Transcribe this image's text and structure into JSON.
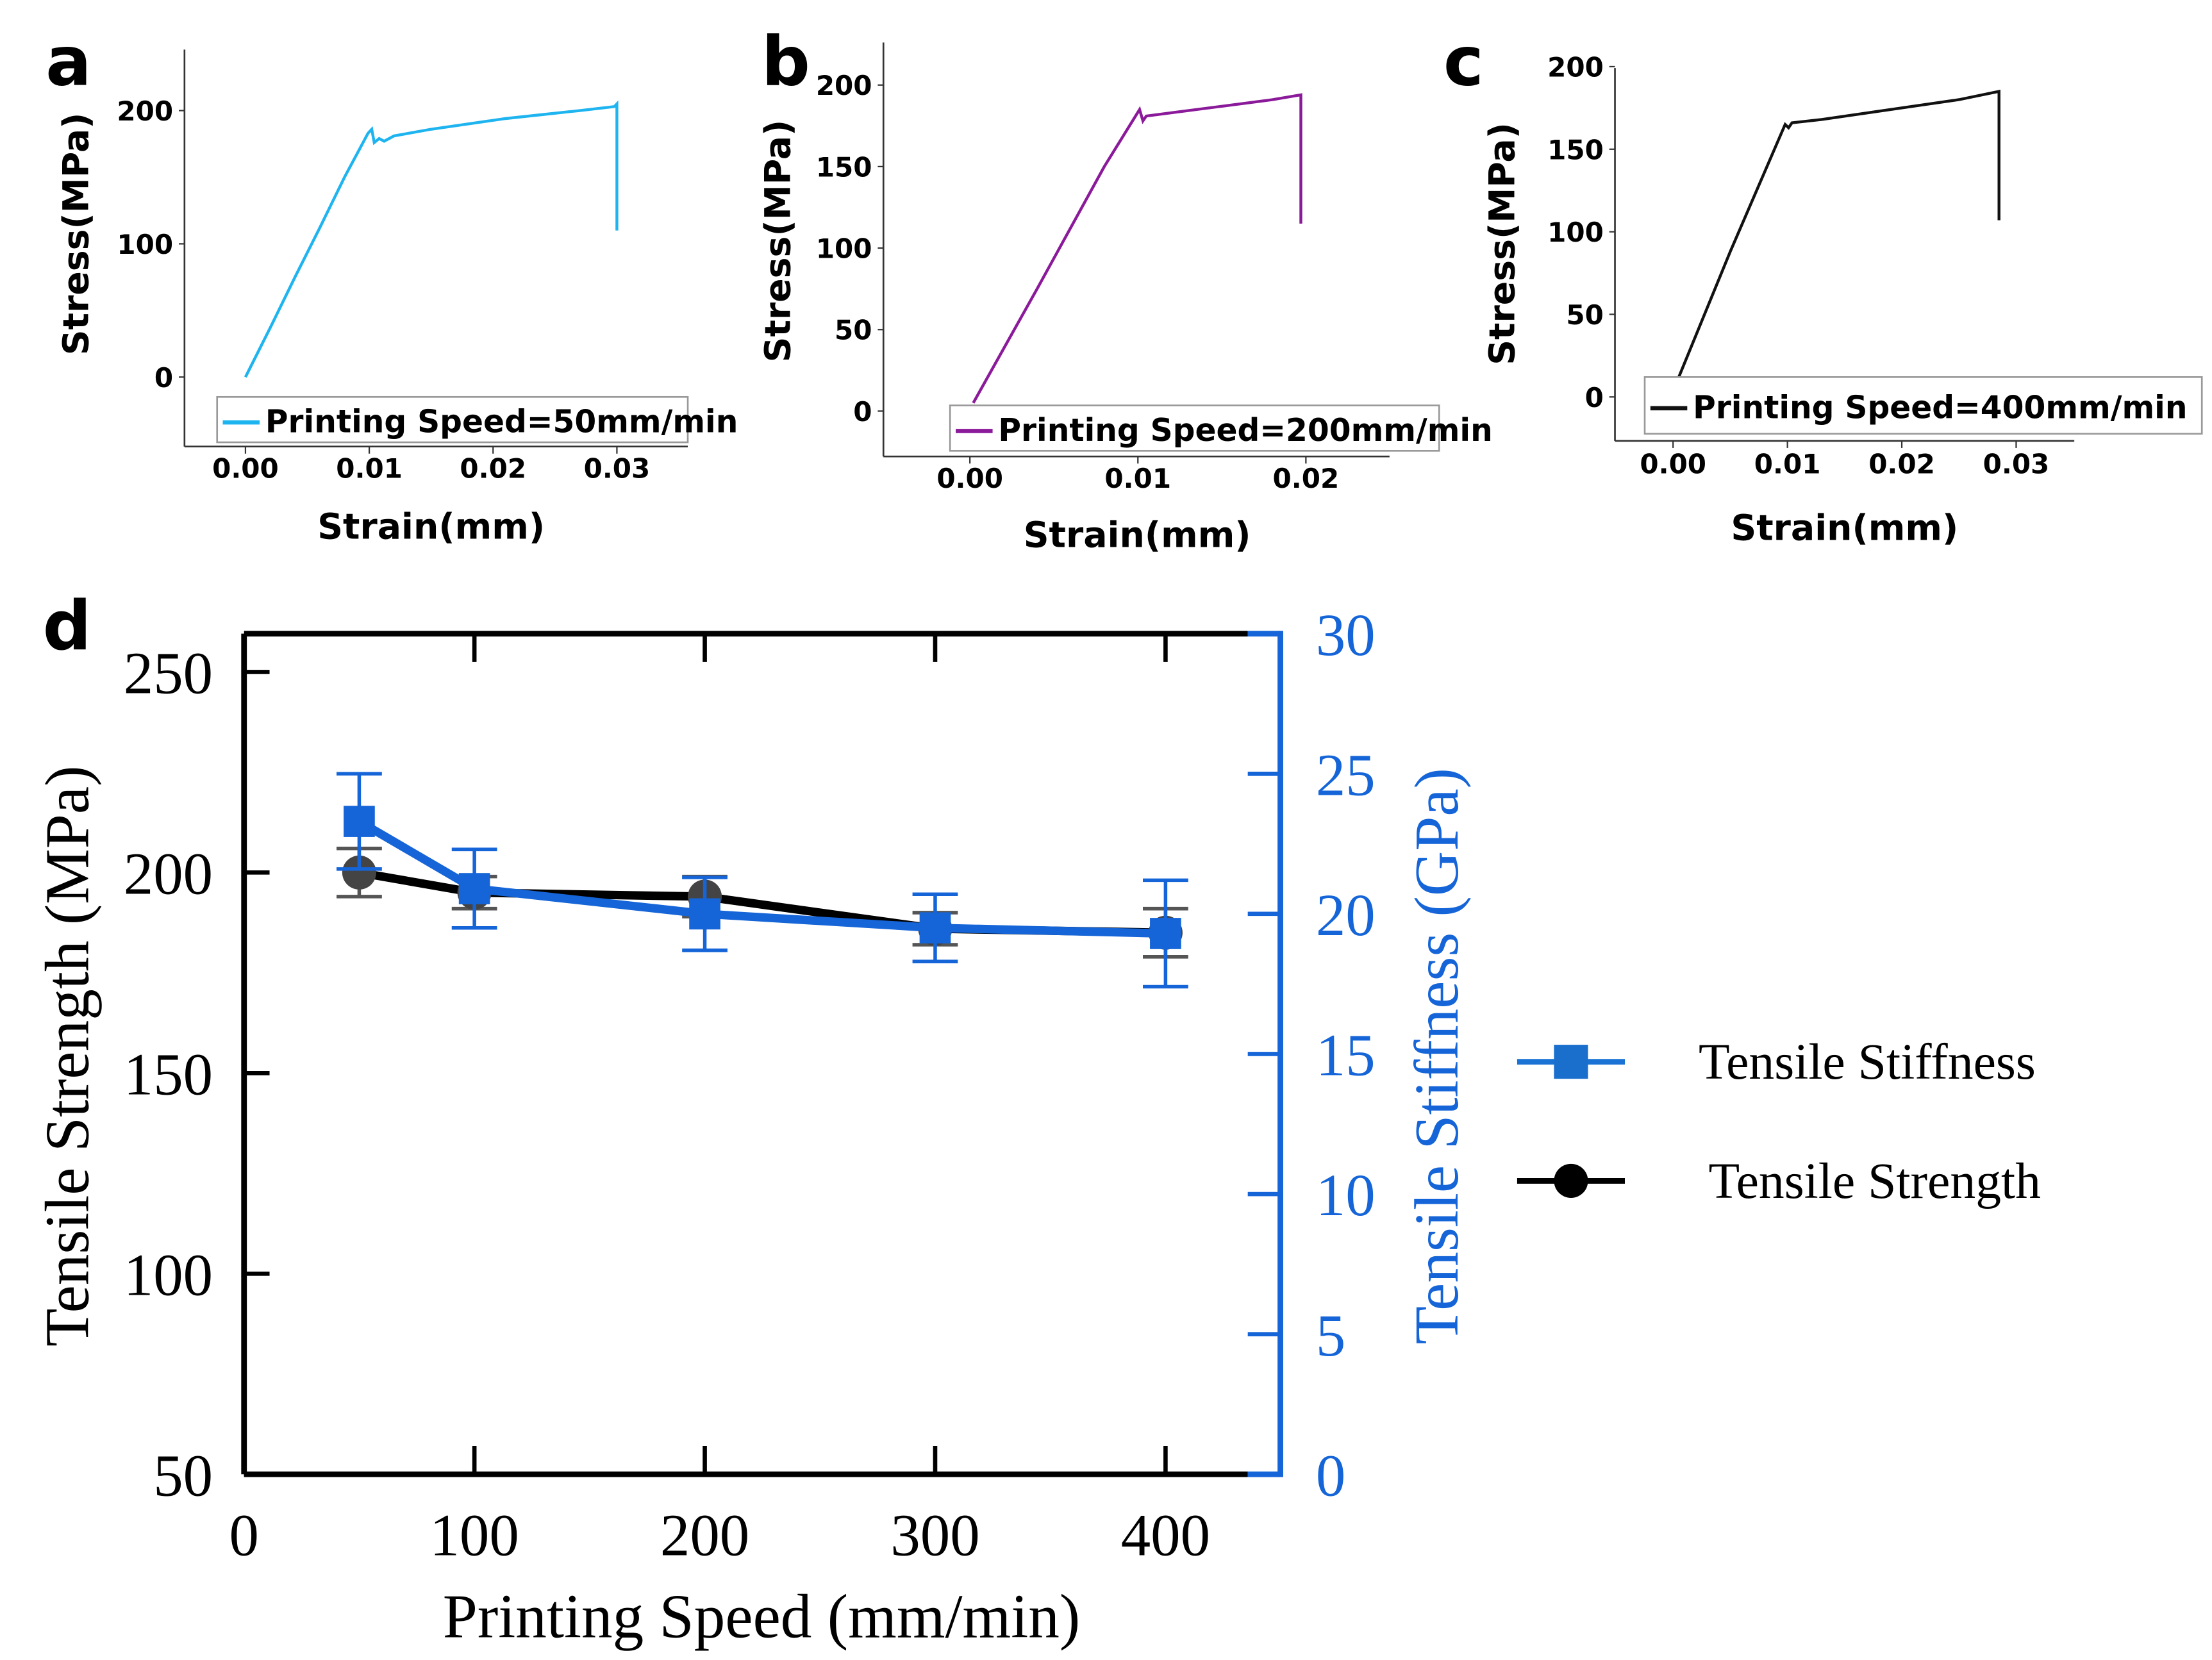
{
  "chart_data": [
    {
      "panel": "a",
      "type": "line",
      "xlabel": "Strain(mm)",
      "ylabel": "Stress(MPa)",
      "xticks": [
        "0.00",
        "0.01",
        "0.02",
        "0.03"
      ],
      "xtick_values": [
        0,
        0.01,
        0.02,
        0.03
      ],
      "yticks": [
        "0",
        "100",
        "200"
      ],
      "ytick_values": [
        0,
        100,
        200
      ],
      "xlim": [
        -0.005,
        0.035
      ],
      "ylim": [
        -50,
        250
      ],
      "legend": "Printing Speed=50mm/min",
      "legend_placement": "bottom",
      "color": "#1EB4F0",
      "series": {
        "x": [
          0,
          0.002,
          0.004,
          0.006,
          0.008,
          0.0099,
          0.0102,
          0.0104,
          0.0108,
          0.0112,
          0.012,
          0.015,
          0.018,
          0.021,
          0.024,
          0.027,
          0.0298,
          0.03,
          0.03
        ],
        "y": [
          0,
          37,
          75,
          112,
          150,
          183,
          186,
          176,
          179,
          177,
          181,
          186,
          190,
          194,
          197,
          200,
          203,
          205,
          110
        ]
      }
    },
    {
      "panel": "b",
      "type": "line",
      "xlabel": "Strain(mm)",
      "ylabel": "Stress(MPa)",
      "xticks": [
        "0.00",
        "0.01",
        "0.02"
      ],
      "xtick_values": [
        0,
        0.01,
        0.02
      ],
      "yticks": [
        "0",
        "50",
        "100",
        "150",
        "200"
      ],
      "ytick_values": [
        0,
        50,
        100,
        150,
        200
      ],
      "xlim": [
        -0.005,
        0.025
      ],
      "ylim": [
        -25,
        225
      ],
      "legend": "Printing Speed=200mm/min",
      "legend_placement": "bottom",
      "color": "#8B1A9A",
      "series": {
        "x": [
          0.0002,
          0.004,
          0.008,
          0.0095,
          0.0101,
          0.0103,
          0.0105,
          0.012,
          0.015,
          0.018,
          0.0197,
          0.0197
        ],
        "y": [
          5,
          75,
          150,
          175,
          185,
          178,
          181,
          183,
          187,
          191,
          194,
          115
        ]
      }
    },
    {
      "panel": "c",
      "type": "line",
      "xlabel": "Strain(mm)",
      "ylabel": "Stress(MPa)",
      "xticks": [
        "0.00",
        "0.01",
        "0.02",
        "0.03"
      ],
      "xtick_values": [
        0,
        0.01,
        0.02,
        0.03
      ],
      "yticks": [
        "0",
        "50",
        "100",
        "150",
        "200"
      ],
      "ytick_values": [
        0,
        50,
        100,
        150,
        200
      ],
      "xlim": [
        -0.005,
        0.035
      ],
      "ylim": [
        -25,
        215
      ],
      "legend": "Printing Speed=400mm/min",
      "legend_placement": "bottom",
      "color": "#111111",
      "series": {
        "x": [
          0.0005,
          0.005,
          0.0098,
          0.0101,
          0.0104,
          0.013,
          0.016,
          0.019,
          0.022,
          0.025,
          0.0285,
          0.0285
        ],
        "y": [
          12,
          88,
          165,
          163,
          166,
          168,
          171,
          174,
          177,
          180,
          185,
          107
        ]
      }
    },
    {
      "panel": "d",
      "type": "line",
      "xlabel": "Printing Speed (mm/min)",
      "ylabel": "Tensile Strength (MPa)",
      "ylabel_right": "Tensile Stiffness (GPa)",
      "xticks": [
        "0",
        "100",
        "200",
        "300",
        "400"
      ],
      "xtick_values": [
        0,
        100,
        200,
        300,
        400
      ],
      "yticks": [
        "50",
        "100",
        "150",
        "200",
        "250"
      ],
      "ytick_values": [
        50,
        100,
        150,
        200,
        250
      ],
      "yticks_right": [
        "0",
        "5",
        "10",
        "15",
        "20",
        "25",
        "30"
      ],
      "ytick_values_right": [
        0,
        5,
        10,
        15,
        20,
        25,
        30
      ],
      "xlim": [
        0,
        435
      ],
      "ylim": [
        50,
        270
      ],
      "ylim_right": [
        0,
        30
      ],
      "legend_placement": "right",
      "series": [
        {
          "name": "Tensile Stiffness",
          "axis": "right",
          "marker": "square",
          "color": "#1565D8",
          "x": [
            50,
            100,
            200,
            300,
            400
          ],
          "y": [
            23.3,
            20.9,
            20.0,
            19.5,
            19.3
          ],
          "err": [
            1.7,
            1.4,
            1.3,
            1.2,
            1.9
          ]
        },
        {
          "name": "Tensile Strength",
          "axis": "left",
          "marker": "circle",
          "color": "#000000",
          "x": [
            50,
            100,
            200,
            300,
            400
          ],
          "y": [
            200,
            195,
            194,
            186,
            185
          ],
          "err": [
            6,
            4,
            5,
            4,
            6
          ]
        }
      ]
    }
  ],
  "panel_labels": [
    "a",
    "b",
    "c",
    "d"
  ]
}
